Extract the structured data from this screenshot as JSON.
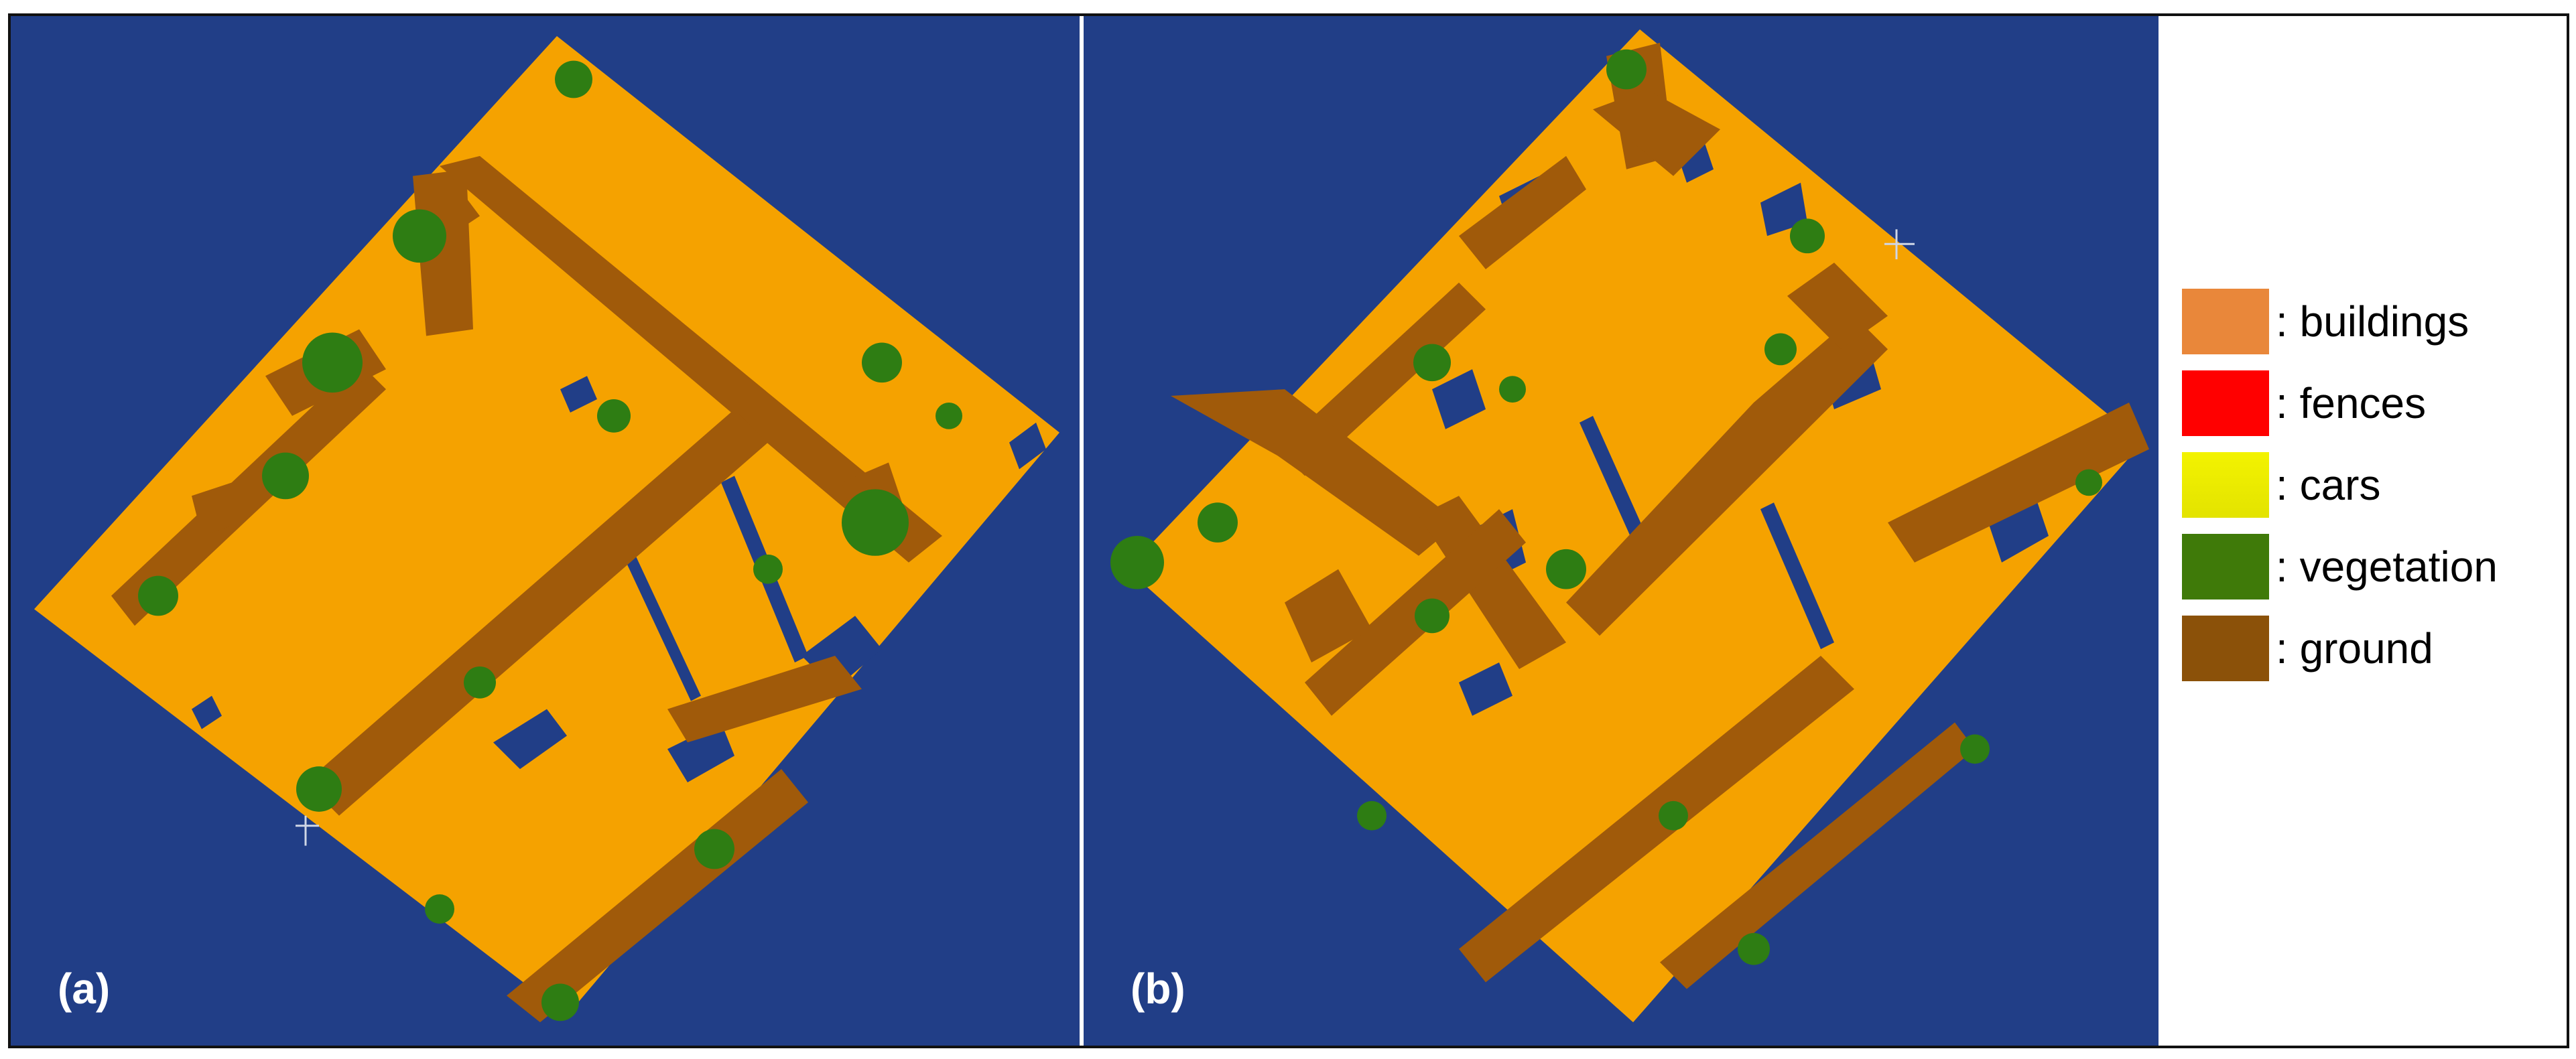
{
  "colors": {
    "background": "#213E87",
    "buildings": "#F5A200",
    "ground": "#A05A0A",
    "vegetation": "#2E7D13",
    "legend_buildings": "#E9873A",
    "legend_fences": "#FF0000",
    "legend_cars": "#F3F300",
    "legend_vegetation": "#3F7A09",
    "legend_ground": "#8B5109"
  },
  "panels": [
    {
      "label": "(a)"
    },
    {
      "label": "(b)"
    }
  ],
  "legend": [
    {
      "key": "buildings",
      "text": ": buildings",
      "color": "#E9873A",
      "icon": "orange-swatch"
    },
    {
      "key": "fences",
      "text": ": fences",
      "color": "#FF0000",
      "icon": "red-swatch"
    },
    {
      "key": "cars",
      "text": ": cars",
      "color": "#F3F300",
      "icon": "yellow-swatch"
    },
    {
      "key": "vegetation",
      "text": ": vegetation",
      "color": "#3F7A09",
      "icon": "green-swatch"
    },
    {
      "key": "ground",
      "text": ": ground",
      "color": "#8B5109",
      "icon": "brown-swatch"
    }
  ]
}
